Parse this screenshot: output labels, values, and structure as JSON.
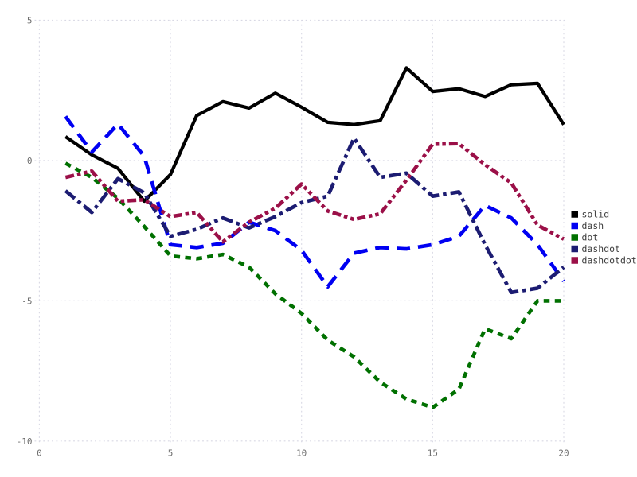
{
  "chart_data": {
    "type": "line",
    "title": "",
    "xlabel": "",
    "ylabel": "",
    "xlim": [
      0,
      20
    ],
    "ylim": [
      -10,
      5
    ],
    "grid": true,
    "grid_style": "dotted",
    "legend_position": "right",
    "x_tick_values": [
      0,
      5,
      10,
      15,
      20
    ],
    "x_tick_labels": [
      "0",
      "5",
      "10",
      "15",
      "20"
    ],
    "y_tick_values": [
      5,
      0,
      -5,
      -10
    ],
    "y_tick_labels": [
      "5",
      "0",
      "-5",
      "-10"
    ],
    "x": [
      1,
      2,
      3,
      4,
      5,
      6,
      7,
      8,
      9,
      10,
      11,
      12,
      13,
      14,
      15,
      16,
      17,
      18,
      19,
      20
    ],
    "series": [
      {
        "name": "solid",
        "line_style": "solid",
        "color": "#000000",
        "values": [
          0.85,
          0.2,
          -0.28,
          -1.45,
          -0.5,
          1.6,
          2.1,
          1.87,
          2.4,
          1.9,
          1.36,
          1.28,
          1.42,
          3.3,
          2.46,
          2.56,
          2.28,
          2.7,
          2.75,
          1.28
        ]
      },
      {
        "name": "dash",
        "line_style": "dash",
        "color": "#0000f2",
        "values": [
          1.57,
          0.3,
          1.3,
          0.15,
          -3.0,
          -3.1,
          -2.95,
          -2.2,
          -2.5,
          -3.2,
          -4.5,
          -3.3,
          -3.1,
          -3.15,
          -3.0,
          -2.7,
          -1.6,
          -2.05,
          -3.0,
          -4.3
        ]
      },
      {
        "name": "dot",
        "line_style": "dot",
        "color": "#007000",
        "values": [
          -0.1,
          -0.6,
          -1.35,
          -2.35,
          -3.4,
          -3.5,
          -3.35,
          -3.8,
          -4.75,
          -5.45,
          -6.4,
          -7.0,
          -7.9,
          -8.5,
          -8.8,
          -8.15,
          -6.0,
          -6.35,
          -5.0,
          -5.0
        ]
      },
      {
        "name": "dashdot",
        "line_style": "dashdot",
        "color": "#1c1c72",
        "values": [
          -1.08,
          -1.85,
          -0.65,
          -1.15,
          -2.7,
          -2.45,
          -2.05,
          -2.4,
          -2.0,
          -1.5,
          -1.27,
          0.8,
          -0.6,
          -0.45,
          -1.27,
          -1.12,
          -3.0,
          -4.7,
          -4.55,
          -3.8
        ]
      },
      {
        "name": "dashdotdot",
        "line_style": "dashdotdot",
        "color": "#9b1048",
        "values": [
          -0.6,
          -0.38,
          -1.45,
          -1.4,
          -2.0,
          -1.85,
          -2.9,
          -2.2,
          -1.7,
          -0.84,
          -1.8,
          -2.1,
          -1.9,
          -0.7,
          0.58,
          0.6,
          -0.15,
          -0.8,
          -2.3,
          -2.8
        ]
      }
    ],
    "legend_entries": [
      "solid",
      "dash",
      "dot",
      "dashdot",
      "dashdotdot"
    ],
    "grid_color": "#d8d8e4",
    "tick_label_color": "#6e6e6e",
    "legend_text_color": "#3d3d3d",
    "background_color": "#ffffff"
  }
}
